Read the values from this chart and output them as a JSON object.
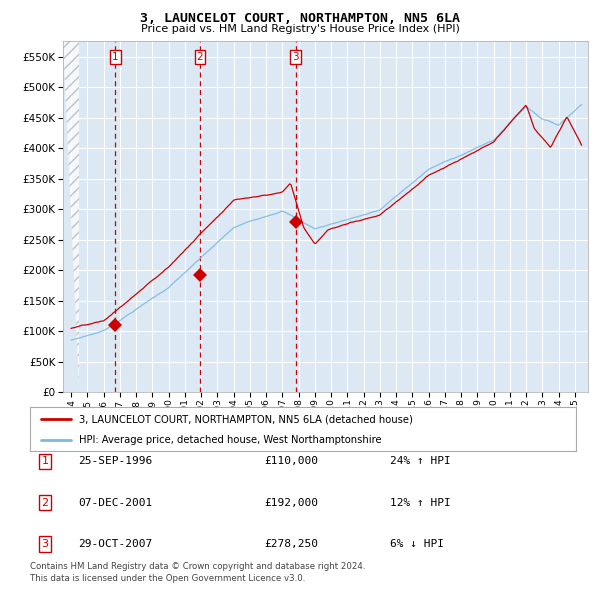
{
  "title": "3, LAUNCELOT COURT, NORTHAMPTON, NN5 6LA",
  "subtitle": "Price paid vs. HM Land Registry's House Price Index (HPI)",
  "background_color": "#dce9f5",
  "plot_bg_color": "#dce9f5",
  "grid_color": "#ffffff",
  "hpi_line_color": "#7db9e0",
  "price_line_color": "#cc0000",
  "vline_color": "#cc0000",
  "ylim": [
    0,
    575000
  ],
  "yticks": [
    0,
    50000,
    100000,
    150000,
    200000,
    250000,
    300000,
    350000,
    400000,
    450000,
    500000,
    550000
  ],
  "transactions": [
    {
      "date_str": "25-SEP-1996",
      "year": 1996.73,
      "price": 110000,
      "label": "1"
    },
    {
      "date_str": "07-DEC-2001",
      "year": 2001.93,
      "price": 192000,
      "label": "2"
    },
    {
      "date_str": "29-OCT-2007",
      "year": 2007.82,
      "price": 278250,
      "label": "3"
    }
  ],
  "legend_entries": [
    "3, LAUNCELOT COURT, NORTHAMPTON, NN5 6LA (detached house)",
    "HPI: Average price, detached house, West Northamptonshire"
  ],
  "table_rows": [
    {
      "num": "1",
      "date": "25-SEP-1996",
      "price": "£110,000",
      "change": "24% ↑ HPI"
    },
    {
      "num": "2",
      "date": "07-DEC-2001",
      "price": "£192,000",
      "change": "12% ↑ HPI"
    },
    {
      "num": "3",
      "date": "29-OCT-2007",
      "price": "£278,250",
      "change": "6% ↓ HPI"
    }
  ],
  "footer": "Contains HM Land Registry data © Crown copyright and database right 2024.\nThis data is licensed under the Open Government Licence v3.0.",
  "xlim_left": 1993.5,
  "xlim_right": 2025.8,
  "hatch_end": 1994.5
}
